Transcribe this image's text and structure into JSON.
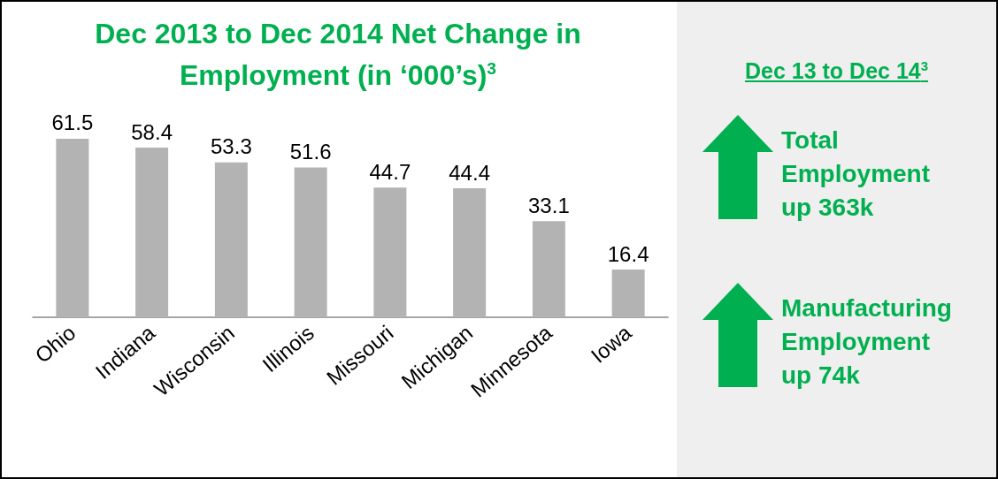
{
  "chart_data": {
    "type": "bar",
    "title": "Dec 2013 to Dec 2014 Net Change in Employment (in ‘000’s)$^{3}$",
    "categories": [
      "Ohio",
      "Indiana",
      "Wisconsin",
      "Illinois",
      "Missouri",
      "Michigan",
      "Minnesota",
      "Iowa"
    ],
    "values": [
      61.5,
      58.4,
      53.3,
      51.6,
      44.7,
      44.4,
      33.1,
      16.4
    ],
    "color": "#b3b3b3",
    "data_labels": true,
    "annotations": [
      "Dec 13 to Dec 14$^{3}$",
      "Total Employment up 363k",
      "Manufacturing Employment up 74k"
    ]
  }
}
